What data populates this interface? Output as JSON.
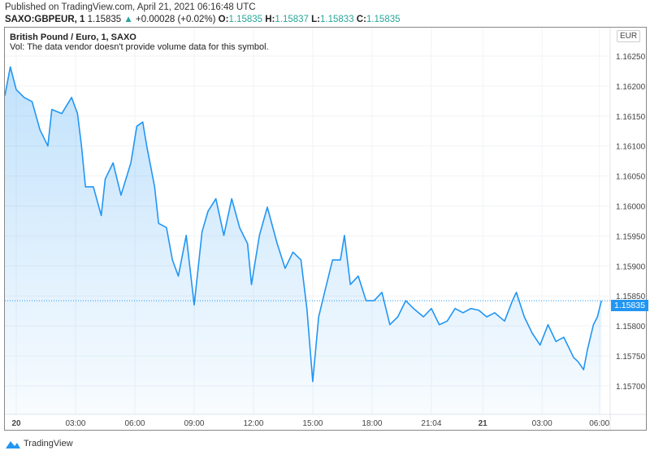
{
  "header": {
    "published": "Published on TradingView.com, April 21, 2021 06:16:48 UTC",
    "symbol": "SAXO:GBPEUR, 1",
    "price": "1.15835",
    "change": "+0.00028 (+0.02%)",
    "o_label": "O:",
    "o": "1.15835",
    "h_label": "H:",
    "h": "1.15837",
    "l_label": "L:",
    "l": "1.15833",
    "c_label": "C:",
    "c": "1.15835"
  },
  "legend": {
    "title": "British Pound / Euro, 1, SAXO",
    "vol": "Vol: The data vendor doesn't provide volume data for this symbol."
  },
  "currency": "EUR",
  "last_price_label": "1.15835",
  "brand": "TradingView",
  "colors": {
    "line": "#2196f3",
    "up": "#26a69a"
  },
  "chart_data": {
    "type": "area",
    "title": "British Pound / Euro, 1, SAXO",
    "xlabel": "",
    "ylabel": "EUR",
    "ylim": [
      1.1565,
      1.163
    ],
    "y_ticks": [
      "1.16250",
      "1.16200",
      "1.16150",
      "1.16100",
      "1.16050",
      "1.16000",
      "1.15950",
      "1.15900",
      "1.15850",
      "1.15800",
      "1.15750",
      "1.15700"
    ],
    "x_ticks": [
      {
        "label": "20",
        "t": 0,
        "bold": true
      },
      {
        "label": "03:00",
        "t": 3
      },
      {
        "label": "06:00",
        "t": 6
      },
      {
        "label": "09:00",
        "t": 9
      },
      {
        "label": "12:00",
        "t": 12
      },
      {
        "label": "15:00",
        "t": 15
      },
      {
        "label": "18:00",
        "t": 18
      },
      {
        "label": "21:04",
        "t": 21
      },
      {
        "label": "21",
        "t": 23.6,
        "bold": true
      },
      {
        "label": "03:00",
        "t": 26.6
      },
      {
        "label": "06:00",
        "t": 29.5
      }
    ],
    "x_unit": "hours since Apr 20 00:00",
    "series": [
      {
        "name": "GBPEUR",
        "t": [
          -0.6,
          -0.3,
          0,
          0.4,
          0.8,
          1.2,
          1.6,
          1.8,
          2.3,
          2.8,
          3.1,
          3.3,
          3.5,
          3.9,
          4.3,
          4.5,
          4.9,
          5.3,
          5.8,
          6.1,
          6.4,
          6.6,
          7.0,
          7.2,
          7.6,
          7.9,
          8.2,
          8.6,
          9.0,
          9.4,
          9.7,
          10.1,
          10.5,
          10.9,
          11.3,
          11.7,
          11.9,
          12.3,
          12.7,
          13.2,
          13.6,
          14.0,
          14.4,
          14.7,
          15.0,
          15.3,
          15.6,
          16.0,
          16.4,
          16.6,
          16.9,
          17.3,
          17.7,
          18.1,
          18.5,
          18.9,
          19.3,
          19.7,
          20.1,
          20.6,
          21.0,
          21.4,
          21.8,
          22.2,
          22.6,
          23.0,
          23.4,
          23.8,
          24.2,
          24.7,
          25.1,
          25.3,
          25.7,
          26.1,
          26.5,
          26.9,
          27.3,
          27.7,
          28.2,
          28.4,
          28.7,
          28.9,
          29.2,
          29.4,
          29.6
        ],
        "values": [
          1.16184,
          1.16232,
          1.16194,
          1.16181,
          1.16174,
          1.16127,
          1.161,
          1.16161,
          1.16154,
          1.16181,
          1.16154,
          1.161,
          1.16032,
          1.16032,
          1.15984,
          1.16045,
          1.16072,
          1.16018,
          1.16072,
          1.16133,
          1.1614,
          1.161,
          1.16032,
          1.15971,
          1.15964,
          1.1591,
          1.15883,
          1.15951,
          1.15835,
          1.15957,
          1.15991,
          1.16012,
          1.15951,
          1.16012,
          1.15964,
          1.15937,
          1.15869,
          1.15951,
          1.15998,
          1.15937,
          1.15896,
          1.15923,
          1.1591,
          1.15829,
          1.15707,
          1.15815,
          1.15856,
          1.1591,
          1.1591,
          1.15951,
          1.15869,
          1.15883,
          1.15842,
          1.15842,
          1.15856,
          1.15802,
          1.15815,
          1.15842,
          1.15829,
          1.15815,
          1.15829,
          1.15802,
          1.15808,
          1.15829,
          1.15822,
          1.15829,
          1.15826,
          1.15815,
          1.15822,
          1.15808,
          1.15842,
          1.15856,
          1.15815,
          1.15788,
          1.15768,
          1.15802,
          1.15774,
          1.15781,
          1.15747,
          1.15741,
          1.15727,
          1.15761,
          1.15802,
          1.15815,
          1.15842
        ]
      }
    ]
  }
}
